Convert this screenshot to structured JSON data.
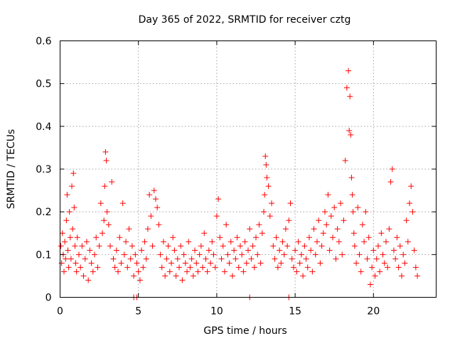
{
  "chart_data": {
    "type": "scatter",
    "title": "Day 365 of 2022, SRMTID for receiver cztg",
    "xlabel": "GPS time / hours",
    "ylabel": "SRMTID / TECUs",
    "xlim": [
      0,
      24
    ],
    "ylim": [
      0,
      0.6
    ],
    "xticks": [
      0,
      5,
      10,
      15,
      20
    ],
    "yticks": [
      0,
      0.1,
      0.2,
      0.3,
      0.4,
      0.5,
      0.6
    ],
    "xtick_labels": [
      "0",
      "5",
      "10",
      "15",
      "20"
    ],
    "ytick_labels": [
      "0",
      "0.1",
      "0.2",
      "0.3",
      "0.4",
      "0.5",
      "0.6"
    ],
    "grid": true,
    "marker": "plus",
    "color": "#ff0000",
    "series": [
      {
        "name": "SRMTID",
        "x": [
          0.05,
          0.1,
          0.15,
          0.2,
          0.25,
          0.3,
          0.35,
          0.4,
          0.45,
          0.5,
          0.55,
          0.6,
          0.65,
          0.7,
          0.75,
          0.8,
          0.85,
          0.9,
          0.95,
          1.0,
          1.05,
          1.1,
          1.2,
          1.3,
          1.4,
          1.5,
          1.6,
          1.7,
          1.8,
          1.9,
          2.0,
          2.1,
          2.2,
          2.3,
          2.4,
          2.5,
          2.6,
          2.7,
          2.8,
          2.85,
          2.9,
          2.95,
          3.0,
          3.1,
          3.2,
          3.3,
          3.4,
          3.5,
          3.6,
          3.7,
          3.8,
          3.9,
          4.0,
          4.1,
          4.2,
          4.3,
          4.4,
          4.5,
          4.6,
          4.7,
          4.8,
          4.9,
          5.0,
          5.1,
          5.2,
          5.3,
          5.4,
          5.5,
          5.6,
          5.7,
          5.8,
          5.9,
          6.0,
          6.1,
          6.2,
          6.3,
          6.4,
          6.5,
          6.6,
          6.7,
          6.8,
          6.9,
          7.0,
          7.1,
          7.2,
          7.3,
          7.4,
          7.5,
          7.6,
          7.7,
          7.8,
          7.9,
          8.0,
          8.1,
          8.2,
          8.3,
          8.4,
          8.5,
          8.6,
          8.7,
          8.8,
          8.9,
          9.0,
          9.1,
          9.2,
          9.3,
          9.4,
          9.5,
          9.6,
          9.7,
          9.8,
          9.9,
          10.0,
          10.1,
          10.2,
          10.3,
          10.4,
          10.5,
          10.6,
          10.7,
          10.8,
          10.9,
          11.0,
          11.1,
          11.2,
          11.3,
          11.4,
          11.5,
          11.6,
          11.7,
          11.8,
          11.9,
          12.0,
          12.1,
          12.2,
          12.3,
          12.4,
          12.5,
          12.6,
          12.7,
          12.8,
          12.9,
          13.0,
          13.05,
          13.1,
          13.15,
          13.2,
          13.3,
          13.4,
          13.5,
          13.6,
          13.7,
          13.8,
          13.9,
          14.0,
          14.1,
          14.2,
          14.3,
          14.4,
          14.5,
          14.6,
          14.7,
          14.8,
          14.9,
          15.0,
          15.1,
          15.2,
          15.3,
          15.4,
          15.5,
          15.6,
          15.7,
          15.8,
          15.9,
          16.0,
          16.1,
          16.2,
          16.3,
          16.4,
          16.5,
          16.6,
          16.7,
          16.8,
          16.9,
          17.0,
          17.1,
          17.2,
          17.3,
          17.4,
          17.5,
          17.6,
          17.7,
          17.8,
          17.9,
          18.0,
          18.1,
          18.2,
          18.3,
          18.4,
          18.45,
          18.5,
          18.55,
          18.6,
          18.65,
          18.7,
          18.75,
          18.8,
          18.9,
          19.0,
          19.1,
          19.2,
          19.3,
          19.4,
          19.5,
          19.6,
          19.7,
          19.8,
          19.9,
          20.0,
          20.1,
          20.2,
          20.3,
          20.4,
          20.5,
          20.6,
          20.7,
          20.8,
          20.9,
          21.0,
          21.1,
          21.2,
          21.3,
          21.4,
          21.5,
          21.6,
          21.7,
          21.8,
          21.9,
          22.0,
          22.1,
          22.2,
          22.3,
          22.4,
          22.5,
          22.6,
          22.7,
          22.8,
          4.7,
          4.9,
          12.1,
          14.6
        ],
        "y": [
          0.12,
          0.08,
          0.15,
          0.1,
          0.06,
          0.13,
          0.09,
          0.18,
          0.24,
          0.11,
          0.07,
          0.2,
          0.14,
          0.09,
          0.26,
          0.16,
          0.29,
          0.21,
          0.12,
          0.08,
          0.06,
          0.14,
          0.1,
          0.07,
          0.12,
          0.05,
          0.09,
          0.13,
          0.04,
          0.11,
          0.08,
          0.06,
          0.1,
          0.14,
          0.07,
          0.12,
          0.22,
          0.15,
          0.18,
          0.26,
          0.34,
          0.32,
          0.2,
          0.17,
          0.12,
          0.27,
          0.09,
          0.07,
          0.11,
          0.06,
          0.14,
          0.08,
          0.22,
          0.1,
          0.13,
          0.07,
          0.16,
          0.09,
          0.12,
          0.05,
          0.1,
          0.08,
          0.06,
          0.04,
          0.11,
          0.07,
          0.13,
          0.09,
          0.16,
          0.24,
          0.19,
          0.12,
          0.25,
          0.23,
          0.21,
          0.17,
          0.1,
          0.07,
          0.13,
          0.05,
          0.09,
          0.12,
          0.06,
          0.08,
          0.14,
          0.11,
          0.05,
          0.09,
          0.07,
          0.12,
          0.04,
          0.1,
          0.08,
          0.06,
          0.13,
          0.07,
          0.09,
          0.05,
          0.11,
          0.08,
          0.06,
          0.1,
          0.12,
          0.07,
          0.15,
          0.09,
          0.06,
          0.11,
          0.08,
          0.13,
          0.1,
          0.07,
          0.19,
          0.23,
          0.14,
          0.09,
          0.12,
          0.06,
          0.17,
          0.1,
          0.08,
          0.13,
          0.05,
          0.11,
          0.09,
          0.14,
          0.07,
          0.12,
          0.1,
          0.06,
          0.13,
          0.08,
          0.11,
          0.16,
          0.09,
          0.12,
          0.07,
          0.14,
          0.1,
          0.17,
          0.08,
          0.15,
          0.2,
          0.24,
          0.33,
          0.31,
          0.28,
          0.26,
          0.19,
          0.22,
          0.12,
          0.09,
          0.14,
          0.07,
          0.11,
          0.08,
          0.13,
          0.1,
          0.16,
          0.12,
          0.18,
          0.22,
          0.09,
          0.07,
          0.11,
          0.06,
          0.13,
          0.08,
          0.1,
          0.05,
          0.12,
          0.09,
          0.07,
          0.14,
          0.11,
          0.06,
          0.16,
          0.1,
          0.13,
          0.18,
          0.08,
          0.12,
          0.15,
          0.2,
          0.17,
          0.24,
          0.11,
          0.19,
          0.14,
          0.21,
          0.09,
          0.16,
          0.13,
          0.22,
          0.1,
          0.18,
          0.32,
          0.49,
          0.53,
          0.39,
          0.47,
          0.38,
          0.28,
          0.24,
          0.2,
          0.15,
          0.12,
          0.08,
          0.21,
          0.1,
          0.06,
          0.17,
          0.13,
          0.2,
          0.09,
          0.14,
          0.03,
          0.07,
          0.11,
          0.05,
          0.09,
          0.12,
          0.06,
          0.15,
          0.1,
          0.08,
          0.13,
          0.07,
          0.16,
          0.27,
          0.3,
          0.11,
          0.09,
          0.14,
          0.07,
          0.12,
          0.05,
          0.1,
          0.08,
          0.18,
          0.13,
          0.22,
          0.26,
          0.2,
          0.11,
          0.07,
          0.05,
          0.0,
          0.0,
          0.0,
          0.0
        ]
      }
    ]
  }
}
